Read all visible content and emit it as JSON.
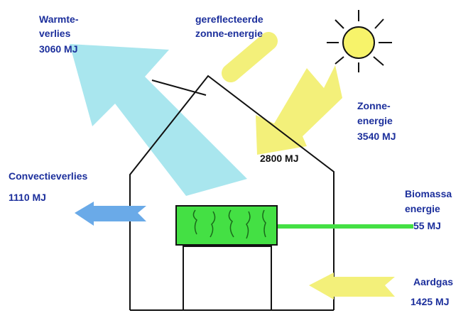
{
  "labels": {
    "heat_loss": {
      "lines": [
        "Warmte-",
        "verlies"
      ],
      "amount": "3060 MJ"
    },
    "reflected": {
      "lines": [
        "gereflecteerde",
        "zonne-energie"
      ]
    },
    "solar": {
      "lines": [
        "Zonne-",
        "energie"
      ],
      "amount": "3540 MJ"
    },
    "solar_in": {
      "amount": "2800 MJ"
    },
    "convection": {
      "lines": [
        "Convectieverlies"
      ],
      "amount": "1110 MJ"
    },
    "biomass": {
      "lines": [
        "Biomassa",
        "energie"
      ],
      "amount": "55 MJ"
    },
    "gas": {
      "lines": [
        "Aardgas"
      ],
      "amount": "1425 MJ"
    }
  }
}
